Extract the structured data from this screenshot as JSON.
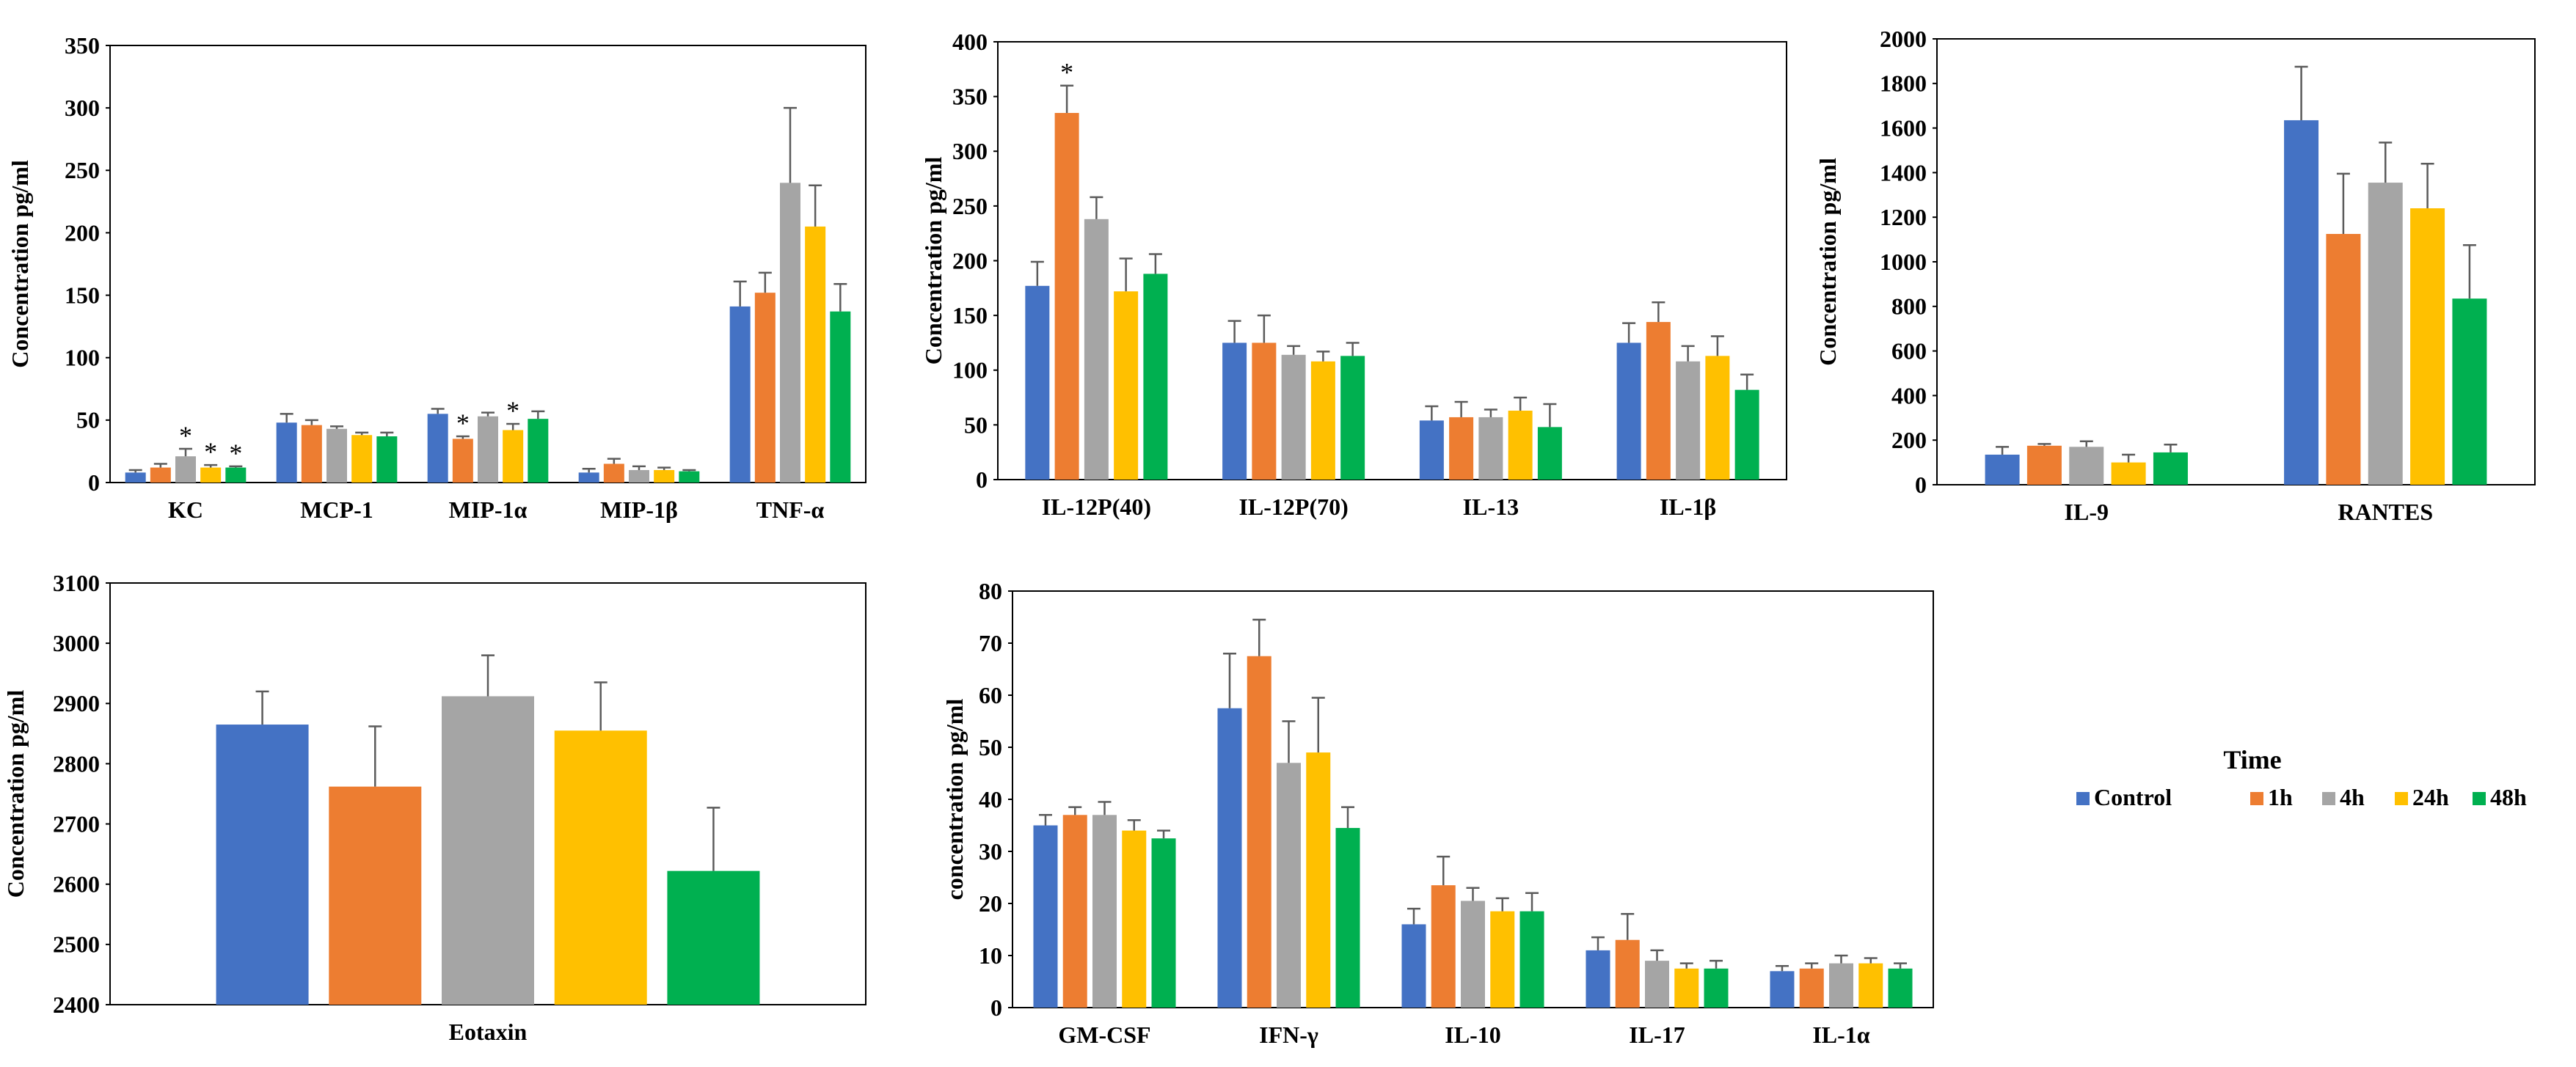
{
  "legend": {
    "title": "Time",
    "series": [
      "Control",
      "1h",
      "4h",
      "24h",
      "48h"
    ]
  },
  "colors": {
    "series": [
      "#4472C4",
      "#ED7D31",
      "#A5A5A5",
      "#FFC000",
      "#00B050"
    ],
    "axis": "#000000",
    "error_bar": "#5b5b5b"
  },
  "chart_data": [
    {
      "id": "chart-1",
      "type": "bar",
      "ylabel": "Concentration  pg/ml",
      "ylim": [
        0,
        350
      ],
      "yticks": [
        0,
        50,
        100,
        150,
        200,
        250,
        300,
        350
      ],
      "categories": [
        "KC",
        "MCP-1",
        "MIP-1α",
        "MIP-1β",
        "TNF-α"
      ],
      "series": [
        {
          "name": "Control",
          "values": [
            8,
            48,
            55,
            8,
            141
          ],
          "errors": [
            2,
            7,
            4,
            3,
            20
          ]
        },
        {
          "name": "1h",
          "values": [
            12,
            46,
            35,
            15,
            152
          ],
          "errors": [
            3,
            4,
            2,
            4,
            16
          ]
        },
        {
          "name": "4h",
          "values": [
            21,
            43,
            53,
            10,
            240
          ],
          "errors": [
            6,
            2,
            3,
            3,
            60
          ]
        },
        {
          "name": "24h",
          "values": [
            12,
            38,
            42,
            10,
            205
          ],
          "errors": [
            2,
            2,
            5,
            2,
            33
          ]
        },
        {
          "name": "48h",
          "values": [
            12,
            37,
            51,
            9,
            137
          ],
          "errors": [
            1,
            3,
            6,
            1,
            22
          ]
        }
      ],
      "annotations": [
        {
          "category": 0,
          "series": 2,
          "text": "*"
        },
        {
          "category": 0,
          "series": 3,
          "text": "*"
        },
        {
          "category": 0,
          "series": 4,
          "text": "*"
        },
        {
          "category": 2,
          "series": 1,
          "text": "*"
        },
        {
          "category": 2,
          "series": 3,
          "text": "*"
        }
      ]
    },
    {
      "id": "chart-2",
      "type": "bar",
      "ylabel": "Concentration  pg/ml",
      "ylim": [
        0,
        400
      ],
      "yticks": [
        0,
        50,
        100,
        150,
        200,
        250,
        300,
        350,
        400
      ],
      "categories": [
        "IL-12P(40)",
        "IL-12P(70)",
        "IL-13",
        "IL-1β"
      ],
      "series": [
        {
          "name": "Control",
          "values": [
            177,
            125,
            54,
            125
          ],
          "errors": [
            22,
            20,
            13,
            18
          ]
        },
        {
          "name": "1h",
          "values": [
            335,
            125,
            57,
            144
          ],
          "errors": [
            25,
            25,
            14,
            18
          ]
        },
        {
          "name": "4h",
          "values": [
            238,
            114,
            57,
            108
          ],
          "errors": [
            20,
            8,
            7,
            14
          ]
        },
        {
          "name": "24h",
          "values": [
            172,
            108,
            63,
            113
          ],
          "errors": [
            30,
            9,
            12,
            18
          ]
        },
        {
          "name": "48h",
          "values": [
            188,
            113,
            48,
            82
          ],
          "errors": [
            18,
            12,
            21,
            14
          ]
        }
      ],
      "annotations": [
        {
          "category": 0,
          "series": 1,
          "text": "*"
        }
      ]
    },
    {
      "id": "chart-3",
      "type": "bar",
      "ylabel": "Concentration  pg/ml",
      "ylim": [
        0,
        2000
      ],
      "yticks": [
        0,
        200,
        400,
        600,
        800,
        1000,
        1200,
        1400,
        1600,
        1800,
        2000
      ],
      "categories": [
        "IL-9",
        "RANTES"
      ],
      "series": [
        {
          "name": "Control",
          "values": [
            135,
            1635
          ],
          "errors": [
            35,
            240
          ]
        },
        {
          "name": "1h",
          "values": [
            175,
            1125
          ],
          "errors": [
            8,
            270
          ]
        },
        {
          "name": "4h",
          "values": [
            170,
            1355
          ],
          "errors": [
            25,
            180
          ]
        },
        {
          "name": "24h",
          "values": [
            100,
            1240
          ],
          "errors": [
            35,
            200
          ]
        },
        {
          "name": "48h",
          "values": [
            145,
            835
          ],
          "errors": [
            35,
            240
          ]
        }
      ],
      "annotations": []
    },
    {
      "id": "chart-4",
      "type": "bar",
      "ylabel": "Concentration  pg/ml",
      "ylim": [
        2400,
        3100
      ],
      "yticks": [
        2400,
        2500,
        2600,
        2700,
        2800,
        2900,
        3000,
        3100
      ],
      "categories": [
        "Eotaxin"
      ],
      "series": [
        {
          "name": "Control",
          "values": [
            2865
          ],
          "errors": [
            55
          ]
        },
        {
          "name": "1h",
          "values": [
            2762
          ],
          "errors": [
            100
          ]
        },
        {
          "name": "4h",
          "values": [
            2912
          ],
          "errors": [
            68
          ]
        },
        {
          "name": "24h",
          "values": [
            2855
          ],
          "errors": [
            80
          ]
        },
        {
          "name": "48h",
          "values": [
            2622
          ],
          "errors": [
            105
          ]
        }
      ],
      "annotations": []
    },
    {
      "id": "chart-5",
      "type": "bar",
      "ylabel": "concentration  pg/ml",
      "ylim": [
        0,
        80
      ],
      "yticks": [
        0,
        10,
        20,
        30,
        40,
        50,
        60,
        70,
        80
      ],
      "categories": [
        "GM-CSF",
        "IFN-γ",
        "IL-10",
        "IL-17",
        "IL-1α"
      ],
      "series": [
        {
          "name": "Control",
          "values": [
            35,
            57.5,
            16,
            11,
            7
          ],
          "errors": [
            2,
            10.5,
            3,
            2.5,
            1
          ]
        },
        {
          "name": "1h",
          "values": [
            37,
            67.5,
            23.5,
            13,
            7.5
          ],
          "errors": [
            1.5,
            7,
            5.5,
            5,
            1
          ]
        },
        {
          "name": "4h",
          "values": [
            37,
            47,
            20.5,
            9,
            8.5
          ],
          "errors": [
            2.5,
            8,
            2.5,
            2,
            1.5
          ]
        },
        {
          "name": "24h",
          "values": [
            34,
            49,
            18.5,
            7.5,
            8.5
          ],
          "errors": [
            2,
            10.5,
            2.5,
            1,
            1
          ]
        },
        {
          "name": "48h",
          "values": [
            32.5,
            34.5,
            18.5,
            7.5,
            7.5
          ],
          "errors": [
            1.5,
            4,
            3.5,
            1.5,
            1
          ]
        }
      ],
      "annotations": []
    }
  ]
}
